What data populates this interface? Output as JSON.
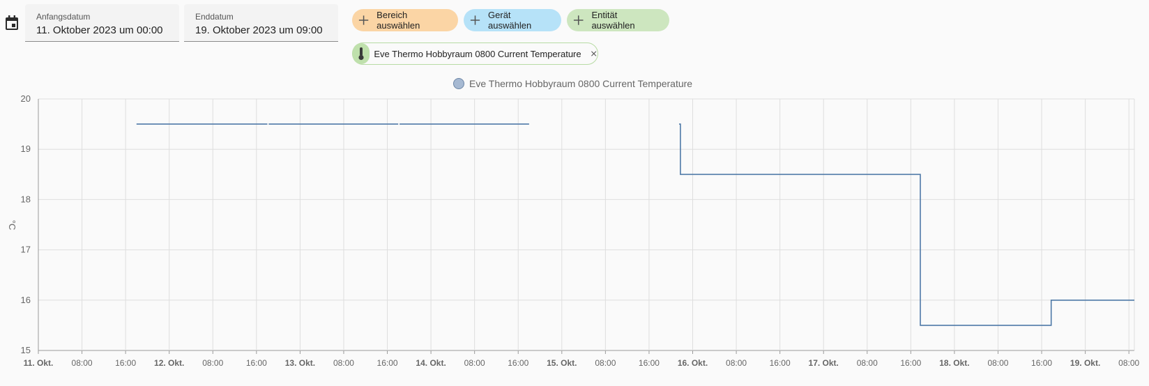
{
  "date_range": {
    "start": {
      "label": "Anfangsdatum",
      "value": "11. Oktober 2023 um 00:00"
    },
    "end": {
      "label": "Enddatum",
      "value": "19. Oktober 2023 um 09:00"
    }
  },
  "target_picker": {
    "area_label": "Bereich auswählen",
    "device_label": "Gerät auswählen",
    "entity_label": "Entität auswählen",
    "area_color": "#fbd5a5",
    "device_color": "#b6e2f8",
    "entity_color": "#cde6bf"
  },
  "selected_entities": [
    {
      "name": "Eve Thermo Hobbyraum 0800 Current Temperature",
      "icon": "thermometer-icon"
    }
  ],
  "chart_data": {
    "type": "line",
    "title": "",
    "legend": [
      {
        "name": "Eve Thermo Hobbyraum 0800 Current Temperature",
        "color": "#4e79a7"
      }
    ],
    "legend_position": "top-center",
    "ylabel": "°C",
    "xlabel": "",
    "ylim": [
      15,
      20
    ],
    "y_ticks": [
      "20",
      "19",
      "18",
      "17",
      "16",
      "15"
    ],
    "x_range": [
      "2023-10-11 00:00",
      "2023-10-19 09:00"
    ],
    "x_ticks": [
      {
        "label": "11. Okt.",
        "bold": true
      },
      {
        "label": "08:00",
        "bold": false
      },
      {
        "label": "16:00",
        "bold": false
      },
      {
        "label": "12. Okt.",
        "bold": true
      },
      {
        "label": "08:00",
        "bold": false
      },
      {
        "label": "16:00",
        "bold": false
      },
      {
        "label": "13. Okt.",
        "bold": true
      },
      {
        "label": "08:00",
        "bold": false
      },
      {
        "label": "16:00",
        "bold": false
      },
      {
        "label": "14. Okt.",
        "bold": true
      },
      {
        "label": "08:00",
        "bold": false
      },
      {
        "label": "16:00",
        "bold": false
      },
      {
        "label": "15. Okt.",
        "bold": true
      },
      {
        "label": "08:00",
        "bold": false
      },
      {
        "label": "16:00",
        "bold": false
      },
      {
        "label": "16. Okt.",
        "bold": true
      },
      {
        "label": "08:00",
        "bold": false
      },
      {
        "label": "16:00",
        "bold": false
      },
      {
        "label": "17. Okt.",
        "bold": true
      },
      {
        "label": "08:00",
        "bold": false
      },
      {
        "label": "16:00",
        "bold": false
      },
      {
        "label": "18. Okt.",
        "bold": true
      },
      {
        "label": "08:00",
        "bold": false
      },
      {
        "label": "16:00",
        "bold": false
      },
      {
        "label": "19. Okt.",
        "bold": true
      },
      {
        "label": "08:00",
        "bold": false
      }
    ],
    "grid": true,
    "line_shape": "step",
    "series": [
      {
        "name": "Eve Thermo Hobbyraum 0800 Current Temperature",
        "segments": [
          [
            {
              "x": "2023-10-11 18:00",
              "y": 19.5
            },
            {
              "x": "2023-10-12 18:00",
              "y": 19.5
            }
          ],
          [
            {
              "x": "2023-10-12 18:15",
              "y": 19.5
            },
            {
              "x": "2023-10-13 18:00",
              "y": 19.5
            }
          ],
          [
            {
              "x": "2023-10-13 18:15",
              "y": 19.5
            },
            {
              "x": "2023-10-14 18:00",
              "y": 19.5
            }
          ],
          [
            {
              "x": "2023-10-15 21:30",
              "y": 19.5
            },
            {
              "x": "2023-10-15 21:45",
              "y": 19.5
            },
            {
              "x": "2023-10-15 21:45",
              "y": 18.5
            },
            {
              "x": "2023-10-17 17:45",
              "y": 18.5
            },
            {
              "x": "2023-10-17 17:45",
              "y": 15.5
            },
            {
              "x": "2023-10-18 17:45",
              "y": 15.5
            },
            {
              "x": "2023-10-18 17:45",
              "y": 16.0
            },
            {
              "x": "2023-10-19 09:00",
              "y": 16.0
            }
          ]
        ]
      }
    ]
  }
}
